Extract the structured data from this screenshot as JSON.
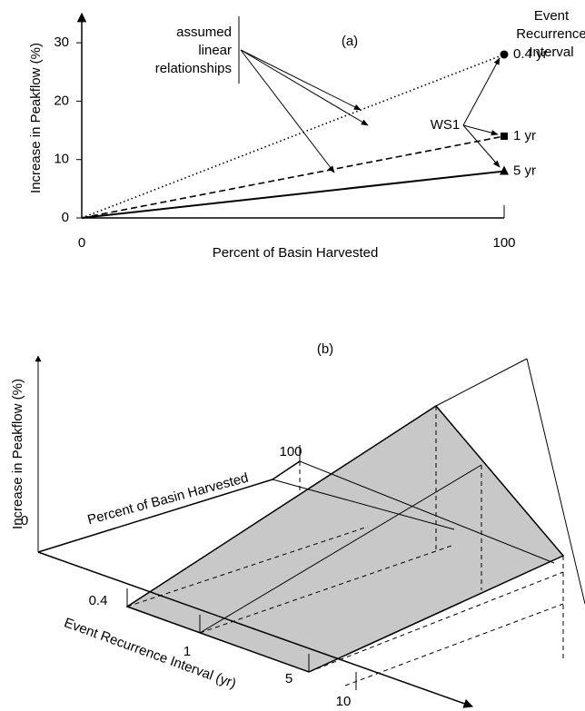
{
  "chart_data": {
    "type": "line",
    "title": "(a)",
    "x_label": "Percent of Basin Harvested",
    "y_label": "Increase in Peakflow (%)",
    "annotation_lines": [
      "assumed",
      "linear",
      "relationships"
    ],
    "legend_title_lines": [
      "Event",
      "Recurrence",
      "Interval"
    ],
    "point_label": "WS1",
    "x": [
      0,
      100
    ],
    "xlim": [
      0,
      100
    ],
    "xticks": [
      0,
      100
    ],
    "ylim": [
      0,
      35
    ],
    "yticks": [
      0,
      10,
      20,
      30
    ],
    "series": [
      {
        "name": "0.4 yr",
        "color": "#000000",
        "dash": "dotted",
        "marker": "circle",
        "values": [
          0,
          28
        ]
      },
      {
        "name": "1 yr",
        "color": "#000000",
        "dash": "dashed",
        "marker": "square",
        "values": [
          0,
          14
        ]
      },
      {
        "name": "5 yr",
        "color": "#000000",
        "dash": "solid",
        "marker": "triangle",
        "values": [
          0,
          8
        ]
      }
    ]
  },
  "panel_b": {
    "label": "(b)",
    "y_axis_label": "Increase in Peakflow (%)",
    "x_axis_label": "Percent of Basin Harvested",
    "x_ticks": [
      0,
      100
    ],
    "z_axis_label": "Event Recurrence Interval (yr)",
    "z_ticks": [
      0.4,
      1,
      5,
      10
    ]
  }
}
